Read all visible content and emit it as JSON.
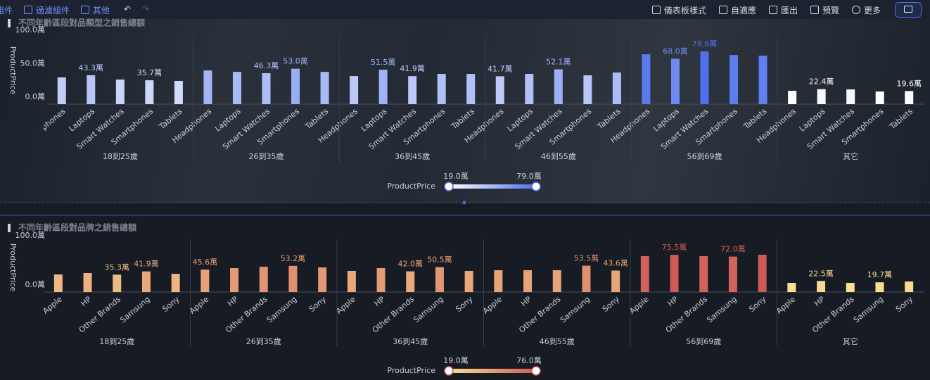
{
  "toolbar": {
    "left": [
      "組件",
      "過濾組件",
      "其他"
    ],
    "right": [
      "儀表板樣式",
      "自適應",
      "匯出",
      "預覽",
      "更多"
    ]
  },
  "chart_data": [
    {
      "type": "bar",
      "title": "不同年齡區段對品類型之銷售總額",
      "y_label": "ProductPrice",
      "categories": [
        "Headphones",
        "Laptops",
        "Smart Watches",
        "Smartphones",
        "Tablets"
      ],
      "series": [
        {
          "name": "18到25歲",
          "values": [
            40,
            43.3,
            36.8,
            35.7,
            34.7
          ],
          "value_labels": [
            null,
            "43.3萬",
            null,
            "35.7萬",
            null
          ]
        },
        {
          "name": "26到35歲",
          "values": [
            50.4,
            48.3,
            46.3,
            53.0,
            48.3
          ],
          "value_labels": [
            null,
            null,
            "46.3萬",
            "53.0萬",
            null
          ]
        },
        {
          "name": "36到45歲",
          "values": [
            42,
            51.5,
            41.9,
            45.2,
            45.2
          ],
          "value_labels": [
            null,
            "51.5萬",
            "41.9萬",
            null,
            null
          ]
        },
        {
          "name": "46到55歲",
          "values": [
            41.7,
            45.2,
            52.1,
            43.1,
            47.3
          ],
          "value_labels": [
            "41.7萬",
            null,
            "52.1萬",
            null,
            null
          ]
        },
        {
          "name": "56到69歲",
          "values": [
            74.6,
            68.0,
            78.8,
            73.5,
            72.5
          ],
          "value_labels": [
            null,
            "68.0萬",
            "78.8萬",
            null,
            null
          ]
        },
        {
          "name": "其它",
          "values": [
            20,
            22.4,
            22,
            18.9,
            19.6
          ],
          "value_labels": [
            null,
            "22.4萬",
            null,
            null,
            "19.6萬"
          ]
        }
      ],
      "ylim": [
        0,
        100
      ],
      "yticks": [
        {
          "value": 0,
          "label": "0.0萬"
        },
        {
          "value": 50,
          "label": "50.0萬"
        },
        {
          "value": 100,
          "label": "100.0萬"
        }
      ],
      "visual_map": {
        "name": "ProductPrice",
        "min": 19.0,
        "max": 79.0,
        "min_label": "19.0萬",
        "max_label": "79.0萬",
        "colors": [
          "#ffffff",
          "#4d70ee"
        ]
      }
    },
    {
      "type": "bar",
      "title": "不同年齡區段對品牌之銷售總額",
      "y_label": "ProductPrice",
      "categories": [
        "Apple",
        "HP",
        "Other Brands",
        "Samsung",
        "Sony"
      ],
      "series": [
        {
          "name": "18到25歲",
          "values": [
            35.7,
            38.6,
            35.3,
            41.9,
            37
          ],
          "value_labels": [
            null,
            null,
            "35.3萬",
            "41.9萬",
            null
          ]
        },
        {
          "name": "26到35歲",
          "values": [
            45.6,
            48.6,
            51.4,
            53.2,
            50
          ],
          "value_labels": [
            "45.6萬",
            null,
            null,
            "53.2萬",
            null
          ]
        },
        {
          "name": "36到45歲",
          "values": [
            42.9,
            48.6,
            42.0,
            50.5,
            42.9
          ],
          "value_labels": [
            null,
            null,
            "42.0萬",
            "50.5萬",
            null
          ]
        },
        {
          "name": "46到55歲",
          "values": [
            44.3,
            44.3,
            44.3,
            53.5,
            43.6
          ],
          "value_labels": [
            null,
            null,
            null,
            "53.5萬",
            "43.6萬"
          ]
        },
        {
          "name": "56到69歲",
          "values": [
            72.9,
            75.5,
            72.9,
            72.0,
            75.7
          ],
          "value_labels": [
            null,
            "75.5萬",
            null,
            "72.0萬",
            null
          ]
        },
        {
          "name": "其它",
          "values": [
            18.6,
            22.5,
            18.6,
            19.7,
            21.4
          ],
          "value_labels": [
            null,
            "22.5萬",
            null,
            "19.7萬",
            null
          ]
        }
      ],
      "ylim": [
        0,
        100
      ],
      "yticks": [
        {
          "value": 0,
          "label": "0.0萬"
        },
        {
          "value": 100,
          "label": "100.0萬"
        }
      ],
      "visual_map": {
        "name": "ProductPrice",
        "min": 19.0,
        "max": 76.0,
        "min_label": "19.0萬",
        "max_label": "76.0萬",
        "colors": [
          "#fbdf94",
          "#cf5a57"
        ]
      }
    }
  ]
}
